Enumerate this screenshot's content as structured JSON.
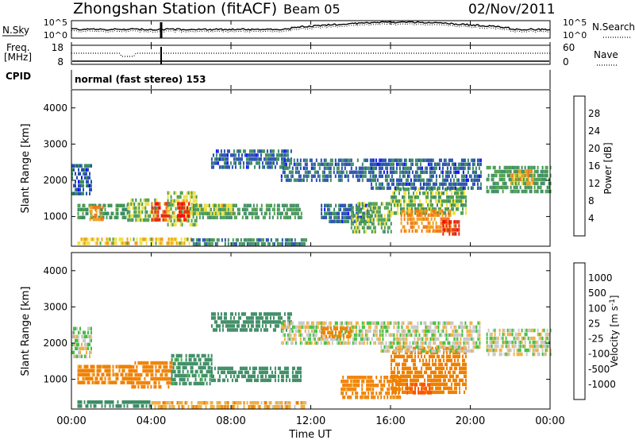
{
  "header": {
    "station": "Zhongshan Station (fitACF)",
    "beam": "Beam 05",
    "date": "02/Nov/2011"
  },
  "strip": {
    "nsky_label": "N.Sky",
    "nsearch_label": "N.Search",
    "freq_label_1": "Freq.",
    "freq_label_2": "[MHz]",
    "nave_label": "Nave",
    "cpid_label": "CPID",
    "cpid_text": "normal (fast stereo) 153",
    "noise_ticks_left": [
      "10^5",
      "10^0"
    ],
    "noise_ticks_right": [
      "10^5",
      "10^0"
    ],
    "freq_ticks": [
      "18",
      "8"
    ],
    "nave_ticks": [
      "60",
      "0"
    ]
  },
  "colors": {
    "power_scale": [
      "#1010ff",
      "#2850b0",
      "#3c8c64",
      "#50a050",
      "#f0e040",
      "#f0a020",
      "#f07818",
      "#e03010",
      "#ff0000"
    ],
    "velocity_scale": [
      "#ff0000",
      "#ff5000",
      "#f08000",
      "#f0b040",
      "#c8c8c8",
      "#c8c8c8",
      "#40c040",
      "#3c8c64",
      "#2850b0",
      "#1010ff"
    ]
  },
  "chart_data": [
    {
      "type": "heatmap",
      "panel": "power",
      "ylabel": "Slant Range [km]",
      "ylim": [
        180,
        4500
      ],
      "yticks": [
        1000,
        2000,
        3000,
        4000
      ],
      "xlim": [
        0,
        24
      ],
      "colorbar": {
        "label": "Power [dB]",
        "ticks": [
          "4",
          "8",
          "12",
          "16",
          "20",
          "24",
          "28"
        ],
        "range": [
          0,
          30
        ]
      },
      "echo_regions": [
        {
          "t0": 0.0,
          "t1": 1.0,
          "r0": 1650,
          "r1": 2450,
          "v": 6
        },
        {
          "t0": 0.3,
          "t1": 2.8,
          "r0": 950,
          "r1": 1350,
          "v": 10
        },
        {
          "t0": 0.9,
          "t1": 1.6,
          "r0": 900,
          "r1": 1300,
          "v": 20
        },
        {
          "t0": 2.8,
          "t1": 4.3,
          "r0": 850,
          "r1": 1500,
          "v": 12
        },
        {
          "t0": 4.0,
          "t1": 4.9,
          "r0": 900,
          "r1": 1400,
          "v": 24
        },
        {
          "t0": 4.8,
          "t1": 6.3,
          "r0": 800,
          "r1": 1700,
          "v": 14
        },
        {
          "t0": 5.3,
          "t1": 5.9,
          "r0": 900,
          "r1": 1400,
          "v": 26
        },
        {
          "t0": 6.0,
          "t1": 11.5,
          "r0": 1000,
          "r1": 1350,
          "v": 10
        },
        {
          "t0": 6.0,
          "t1": 8.0,
          "r0": 1050,
          "r1": 1350,
          "v": 14
        },
        {
          "t0": 7.0,
          "t1": 11.0,
          "r0": 2400,
          "r1": 2850,
          "v": 6
        },
        {
          "t0": 10.5,
          "t1": 15.3,
          "r0": 2000,
          "r1": 2600,
          "v": 6
        },
        {
          "t0": 12.5,
          "t1": 15.0,
          "r0": 900,
          "r1": 1350,
          "v": 6
        },
        {
          "t0": 14.0,
          "t1": 16.0,
          "r0": 600,
          "r1": 1400,
          "v": 12
        },
        {
          "t0": 16.0,
          "t1": 19.8,
          "r0": 1100,
          "r1": 1800,
          "v": 12
        },
        {
          "t0": 16.5,
          "t1": 19.0,
          "r0": 600,
          "r1": 1200,
          "v": 20
        },
        {
          "t0": 18.6,
          "t1": 19.4,
          "r0": 550,
          "r1": 900,
          "v": 26
        },
        {
          "t0": 15.0,
          "t1": 20.5,
          "r0": 1800,
          "r1": 2600,
          "v": 6
        },
        {
          "t0": 20.8,
          "t1": 24.0,
          "r0": 1700,
          "r1": 2400,
          "v": 10
        },
        {
          "t0": 22.0,
          "t1": 23.2,
          "r0": 1900,
          "r1": 2300,
          "v": 18
        },
        {
          "t0": 0.3,
          "t1": 6.0,
          "r0": 220,
          "r1": 420,
          "v": 16
        },
        {
          "t0": 6.0,
          "t1": 11.8,
          "r0": 220,
          "r1": 400,
          "v": 8
        }
      ]
    },
    {
      "type": "heatmap",
      "panel": "velocity",
      "ylabel": "Slant Range [km]",
      "xlabel": "Time UT",
      "ylim": [
        180,
        4500
      ],
      "yticks": [
        1000,
        2000,
        3000,
        4000
      ],
      "xlim": [
        0,
        24
      ],
      "xticks": [
        "00:00",
        "04:00",
        "08:00",
        "12:00",
        "16:00",
        "20:00",
        "00:00"
      ],
      "colorbar": {
        "label": "Velocity [m s-1]",
        "ticks": [
          "-1000",
          "-500",
          "-100",
          "-25",
          "25",
          "100",
          "500",
          "1000"
        ],
        "range": [
          -1000,
          1000
        ]
      },
      "echo_regions": [
        {
          "t0": 0.0,
          "t1": 1.0,
          "r0": 1650,
          "r1": 2450,
          "v": 0
        },
        {
          "t0": 0.3,
          "t1": 3.0,
          "r0": 900,
          "r1": 1400,
          "v": -150
        },
        {
          "t0": 3.0,
          "t1": 5.0,
          "r0": 800,
          "r1": 1500,
          "v": -200
        },
        {
          "t0": 5.0,
          "t1": 7.0,
          "r0": 900,
          "r1": 1700,
          "v": 150
        },
        {
          "t0": 7.0,
          "t1": 11.5,
          "r0": 1000,
          "r1": 1350,
          "v": 300
        },
        {
          "t0": 7.0,
          "t1": 11.0,
          "r0": 2400,
          "r1": 2850,
          "v": 400
        },
        {
          "t0": 10.5,
          "t1": 15.5,
          "r0": 2000,
          "r1": 2600,
          "v": 0
        },
        {
          "t0": 12.5,
          "t1": 14.0,
          "r0": 2150,
          "r1": 2450,
          "v": -200
        },
        {
          "t0": 13.5,
          "t1": 16.5,
          "r0": 500,
          "r1": 1100,
          "v": -150
        },
        {
          "t0": 16.0,
          "t1": 19.8,
          "r0": 600,
          "r1": 1900,
          "v": -200
        },
        {
          "t0": 16.8,
          "t1": 18.0,
          "r0": 600,
          "r1": 900,
          "v": -600
        },
        {
          "t0": 15.5,
          "t1": 20.5,
          "r0": 1800,
          "r1": 2600,
          "v": 0
        },
        {
          "t0": 20.8,
          "t1": 24.0,
          "r0": 1700,
          "r1": 2400,
          "v": 0
        },
        {
          "t0": 0.3,
          "t1": 4.0,
          "r0": 220,
          "r1": 420,
          "v": 300
        },
        {
          "t0": 4.0,
          "t1": 11.8,
          "r0": 220,
          "r1": 400,
          "v": -80
        }
      ]
    }
  ]
}
